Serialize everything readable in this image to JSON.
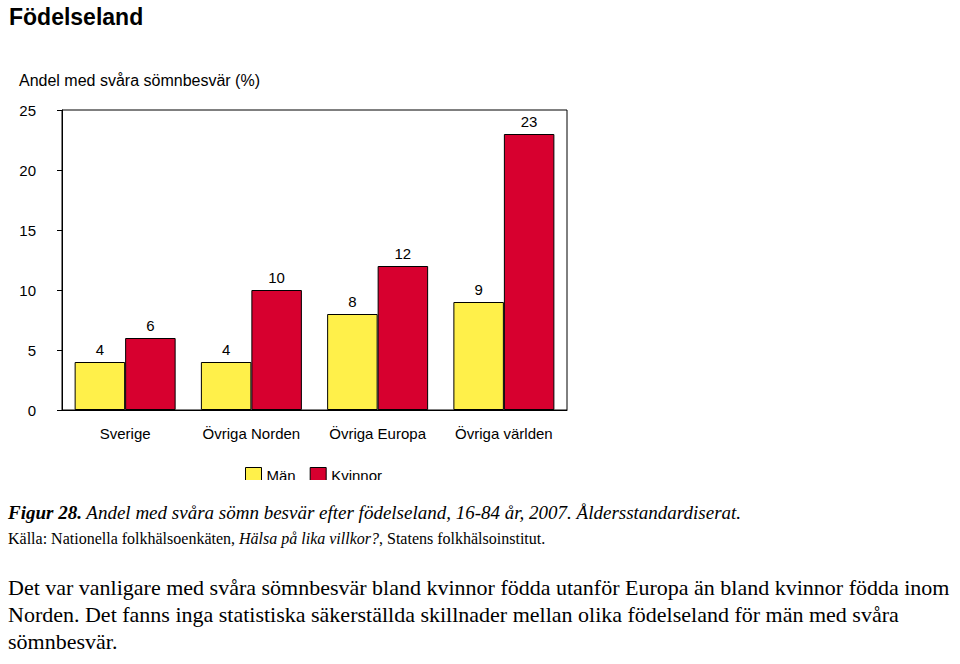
{
  "chart_data": {
    "type": "bar",
    "title": "Födelseland",
    "ylabel": "Andel med svåra sömnbesvär (%)",
    "categories": [
      "Sverige",
      "Övriga Norden",
      "Övriga Europa",
      "Övriga världen"
    ],
    "series": [
      {
        "name": "Män",
        "color": "#fff04a",
        "values": [
          4,
          4,
          8,
          9
        ]
      },
      {
        "name": "Kvinnor",
        "color": "#d7002f",
        "values": [
          6,
          10,
          12,
          23
        ]
      }
    ],
    "ylim": [
      0,
      25
    ],
    "yticks": [
      0,
      5,
      10,
      15,
      20,
      25
    ],
    "grid": false,
    "legend": "bottom",
    "data_labels": true
  },
  "caption": {
    "label": "Figur 28.",
    "text": "Andel med svåra  sömn besvär efter födelseland, 16-84 år, 2007. Åldersstandardiserat."
  },
  "source": [
    "Källa: Nationella folkhälsoenkäten, ",
    "Hälsa på lika villkor?",
    ", Statens folkhälsoinstitut."
  ],
  "paragraph": "Det var vanligare med svåra sömnbesvär bland kvinnor födda utanför Europa än bland kvinnor födda inom Norden. Det fanns inga statistiska säkerställda skillnader mellan olika födelseland för män med svåra sömnbesvär."
}
